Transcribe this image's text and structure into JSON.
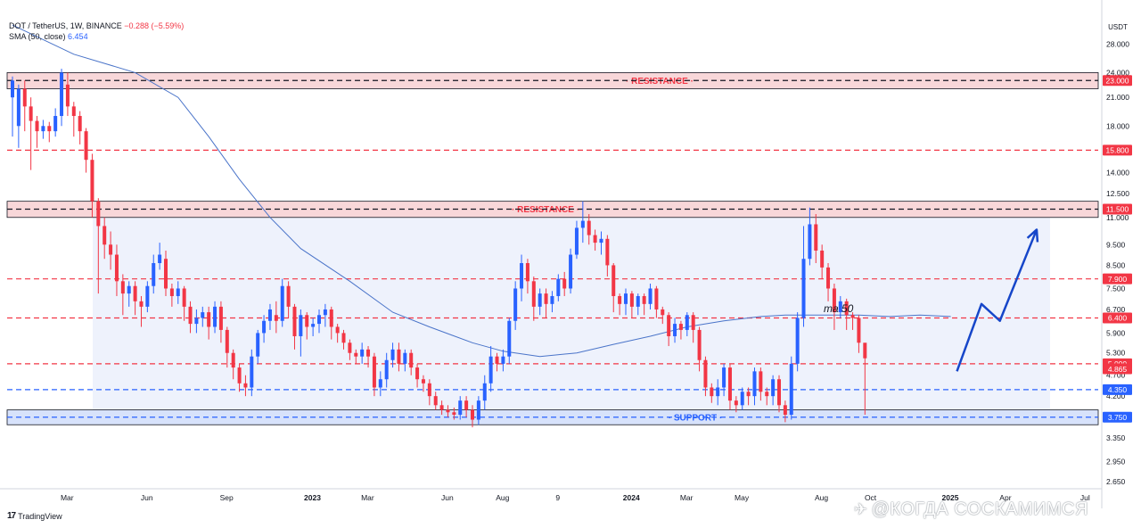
{
  "header": {
    "symbol": "DOT / TetherUS, 1W, BINANCE",
    "change": "−0.288 (−5.59%)",
    "indicator": "SMA (50, close)",
    "indicator_value": "6.454"
  },
  "branding": {
    "logo_text": "TradingView",
    "logo_icon": "tradingview-icon"
  },
  "watermark": {
    "icon": "telegram-icon",
    "text": "@КОГДА СОСКАМИМСЯ"
  },
  "colors": {
    "up": "#2962ff",
    "down": "#f23645",
    "sma": "#4a74c9",
    "resistance": "#f23645",
    "support": "#2962ff",
    "zone_resist": "#f8d7d9",
    "range_fill": "#eef2fc",
    "projection": "#1646c9"
  },
  "chart_data": {
    "type": "candlestick",
    "scale": "log",
    "ylim": [
      2.55,
      33.5
    ],
    "axis_unit_label": "USDT",
    "y_ticks": [
      28.0,
      24.0,
      21.0,
      18.0,
      14.0,
      12.5,
      11.0,
      9.5,
      8.5,
      7.5,
      6.7,
      5.9,
      5.3,
      4.7,
      4.2,
      3.35,
      2.95,
      2.65
    ],
    "y_tick_labels": [
      "28.000",
      "24.000",
      "21.000",
      "18.000",
      "14.000",
      "12.500",
      "11.000",
      "9.500",
      "8.500",
      "7.500",
      "6.700",
      "5.900",
      "5.300",
      "4.700",
      "4.200",
      "3.350",
      "2.950",
      "2.650"
    ],
    "x_tick_labels": [
      "Mar",
      "Jun",
      "Sep",
      "2023",
      "Mar",
      "Jun",
      "Aug",
      "9",
      "2024",
      "Mar",
      "May",
      "Aug",
      "Oct",
      "2025",
      "Apr",
      "Jul"
    ],
    "x_tick_week_index": [
      6,
      19,
      32,
      46,
      55,
      68,
      77,
      86,
      98,
      107,
      116,
      129,
      137,
      150,
      159,
      172
    ],
    "price_levels": [
      {
        "value": 23.0,
        "label": "23.000",
        "kind": "resistance",
        "style": "black-dashed"
      },
      {
        "value": 15.8,
        "label": "15.800",
        "kind": "resistance",
        "style": "red-dashed"
      },
      {
        "value": 11.5,
        "label": "11.500",
        "kind": "resistance",
        "style": "black-dashed"
      },
      {
        "value": 7.9,
        "label": "7.900",
        "kind": "resistance",
        "style": "red-dashed"
      },
      {
        "value": 6.4,
        "label": "6.400",
        "kind": "resistance",
        "style": "red-dashed"
      },
      {
        "value": 5.0,
        "label": "5.000",
        "kind": "resistance",
        "style": "red-dashed"
      },
      {
        "value": 4.35,
        "label": "4.350",
        "kind": "support",
        "style": "blue-dashed"
      },
      {
        "value": 3.75,
        "label": "3.750",
        "kind": "support",
        "style": "blue-dashed"
      }
    ],
    "last_price": {
      "value": 4.865,
      "label": "4.865"
    },
    "zones": [
      {
        "label": "RESISTANCE",
        "from": 22.0,
        "to": 24.0
      },
      {
        "label": "RESISTANCE",
        "from": 11.0,
        "to": 12.0
      },
      {
        "label": "SUPPORT",
        "from": 3.6,
        "to": 3.9
      }
    ],
    "annotations": [
      {
        "text": "ma 50",
        "near_value": 6.7
      }
    ],
    "projection": [
      {
        "week": 154,
        "value": 4.8
      },
      {
        "week": 158,
        "value": 6.9
      },
      {
        "week": 161,
        "value": 6.3
      },
      {
        "week": 167,
        "value": 10.3
      }
    ],
    "sma_50": [
      [
        0,
        31.0
      ],
      [
        10,
        26.5
      ],
      [
        20,
        24.0
      ],
      [
        27,
        21.0
      ],
      [
        32,
        17.0
      ],
      [
        37,
        13.5
      ],
      [
        42,
        11.0
      ],
      [
        47,
        9.3
      ],
      [
        55,
        7.8
      ],
      [
        62,
        6.6
      ],
      [
        68,
        6.1
      ],
      [
        75,
        5.6
      ],
      [
        80,
        5.35
      ],
      [
        86,
        5.2
      ],
      [
        92,
        5.3
      ],
      [
        98,
        5.55
      ],
      [
        104,
        5.8
      ],
      [
        110,
        6.1
      ],
      [
        116,
        6.3
      ],
      [
        122,
        6.45
      ],
      [
        126,
        6.5
      ],
      [
        132,
        6.5
      ],
      [
        138,
        6.5
      ],
      [
        143,
        6.45
      ],
      [
        148,
        6.5
      ],
      [
        153,
        6.45
      ]
    ],
    "candles": [
      [
        21.0,
        23.0,
        18.0,
        17.0,
        23.5
      ],
      [
        18.0,
        22.0,
        16.5,
        16.0,
        22.5
      ],
      [
        22.0,
        20.0,
        19.0,
        17.5,
        23.0
      ],
      [
        20.0,
        18.5,
        16.5,
        14.2,
        21.0
      ],
      [
        18.5,
        17.5,
        16.8,
        16.0,
        19.0
      ],
      [
        17.5,
        18.0,
        17.4,
        16.8,
        18.6
      ],
      [
        18.0,
        17.5,
        17.0,
        16.5,
        18.4
      ],
      [
        17.5,
        19.0,
        17.3,
        17.0,
        19.8
      ],
      [
        19.0,
        24.0,
        18.5,
        18.0,
        24.5
      ],
      [
        22.5,
        20.0,
        19.5,
        19.0,
        24.0
      ],
      [
        20.0,
        19.0,
        17.8,
        17.0,
        20.5
      ],
      [
        19.0,
        17.5,
        17.0,
        16.3,
        19.5
      ],
      [
        17.5,
        15.0,
        14.5,
        14.0,
        17.8
      ],
      [
        15.0,
        12.0,
        11.5,
        11.0,
        15.5
      ],
      [
        12.0,
        10.5,
        10.0,
        7.3,
        12.2
      ],
      [
        10.5,
        9.5,
        9.0,
        8.8,
        11.0
      ],
      [
        9.5,
        9.0,
        8.8,
        8.3,
        10.2
      ],
      [
        9.0,
        7.8,
        7.5,
        7.2,
        9.5
      ],
      [
        7.8,
        7.3,
        6.9,
        6.5,
        8.1
      ],
      [
        7.3,
        7.6,
        7.0,
        6.8,
        7.8
      ],
      [
        7.6,
        7.0,
        6.8,
        6.5,
        7.8
      ],
      [
        7.0,
        6.8,
        6.2,
        6.1,
        7.2
      ],
      [
        6.8,
        7.6,
        6.7,
        6.6,
        7.8
      ],
      [
        7.6,
        8.6,
        7.5,
        7.3,
        9.0
      ],
      [
        8.6,
        9.0,
        8.5,
        8.3,
        9.6
      ],
      [
        8.8,
        7.5,
        7.1,
        7.2,
        9.2
      ],
      [
        7.5,
        7.2,
        6.9,
        6.8,
        7.7
      ],
      [
        7.2,
        7.5,
        7.0,
        6.9,
        7.8
      ],
      [
        7.5,
        6.8,
        6.4,
        6.3,
        7.6
      ],
      [
        6.8,
        6.2,
        6.0,
        5.9,
        7.0
      ],
      [
        6.2,
        6.4,
        6.1,
        5.9,
        6.7
      ],
      [
        6.4,
        6.6,
        6.0,
        6.1,
        6.8
      ],
      [
        6.6,
        6.1,
        5.8,
        5.7,
        6.8
      ],
      [
        6.1,
        6.8,
        6.0,
        5.9,
        7.0
      ],
      [
        6.8,
        6.0,
        5.7,
        5.6,
        7.0
      ],
      [
        6.0,
        5.3,
        5.0,
        4.9,
        6.1
      ],
      [
        5.3,
        4.9,
        4.7,
        4.6,
        5.4
      ],
      [
        4.9,
        4.5,
        4.4,
        4.3,
        5.0
      ],
      [
        4.5,
        4.4,
        4.3,
        4.2,
        4.7
      ],
      [
        4.4,
        5.2,
        4.3,
        4.2,
        5.4
      ],
      [
        5.2,
        5.9,
        5.1,
        5.0,
        6.0
      ],
      [
        5.9,
        6.3,
        5.8,
        5.6,
        6.5
      ],
      [
        6.3,
        6.7,
        6.2,
        6.0,
        6.9
      ],
      [
        6.5,
        6.3,
        6.1,
        5.9,
        7.0
      ],
      [
        6.3,
        7.6,
        6.2,
        6.1,
        7.9
      ],
      [
        7.6,
        6.8,
        6.5,
        6.4,
        7.8
      ],
      [
        6.8,
        5.8,
        5.5,
        5.4,
        6.9
      ],
      [
        5.8,
        6.5,
        5.6,
        5.2,
        6.7
      ],
      [
        6.5,
        6.1,
        5.8,
        5.7,
        6.6
      ],
      [
        6.1,
        6.2,
        5.9,
        5.8,
        6.4
      ],
      [
        6.2,
        6.5,
        6.0,
        5.9,
        6.7
      ],
      [
        6.5,
        6.7,
        6.3,
        6.1,
        6.9
      ],
      [
        6.7,
        6.1,
        5.9,
        5.7,
        6.8
      ],
      [
        6.1,
        5.9,
        5.8,
        5.6,
        6.2
      ],
      [
        5.9,
        5.6,
        5.5,
        5.4,
        6.0
      ],
      [
        5.6,
        5.3,
        5.2,
        5.1,
        5.7
      ],
      [
        5.3,
        5.2,
        5.1,
        5.0,
        5.4
      ],
      [
        5.2,
        5.4,
        5.1,
        5.0,
        5.6
      ],
      [
        5.4,
        5.2,
        5.0,
        4.9,
        5.5
      ],
      [
        5.2,
        4.4,
        4.3,
        4.2,
        5.3
      ],
      [
        4.4,
        4.6,
        4.3,
        4.2,
        4.8
      ],
      [
        4.6,
        5.1,
        4.5,
        4.4,
        5.3
      ],
      [
        5.1,
        5.4,
        5.0,
        4.9,
        5.6
      ],
      [
        5.4,
        5.0,
        4.9,
        4.8,
        5.6
      ],
      [
        5.0,
        5.3,
        4.9,
        4.8,
        5.4
      ],
      [
        5.3,
        4.9,
        4.8,
        4.7,
        5.4
      ],
      [
        4.9,
        4.6,
        4.5,
        4.4,
        5.0
      ],
      [
        4.6,
        4.5,
        4.4,
        4.3,
        4.7
      ],
      [
        4.5,
        4.2,
        4.1,
        4.0,
        4.6
      ],
      [
        4.2,
        4.0,
        3.95,
        3.9,
        4.3
      ],
      [
        4.0,
        3.9,
        3.85,
        3.8,
        4.1
      ],
      [
        3.9,
        3.85,
        3.8,
        3.75,
        4.0
      ],
      [
        3.85,
        3.8,
        3.75,
        3.7,
        3.95
      ],
      [
        3.8,
        4.1,
        3.75,
        3.7,
        4.2
      ],
      [
        4.1,
        3.9,
        3.8,
        3.75,
        4.2
      ],
      [
        3.9,
        3.7,
        3.6,
        3.55,
        4.0
      ],
      [
        3.7,
        4.1,
        3.65,
        3.6,
        4.2
      ],
      [
        4.1,
        4.5,
        4.0,
        3.9,
        4.7
      ],
      [
        4.5,
        5.2,
        4.4,
        4.3,
        5.5
      ],
      [
        5.2,
        5.0,
        4.9,
        4.8,
        5.3
      ],
      [
        5.0,
        5.2,
        4.9,
        4.8,
        5.4
      ],
      [
        5.2,
        6.3,
        5.1,
        5.0,
        6.4
      ],
      [
        6.3,
        7.5,
        6.2,
        6.0,
        7.8
      ],
      [
        7.5,
        8.6,
        7.3,
        7.0,
        9.0
      ],
      [
        8.6,
        7.8,
        7.4,
        7.3,
        8.8
      ],
      [
        7.8,
        6.8,
        6.5,
        6.3,
        8.0
      ],
      [
        6.8,
        7.3,
        6.6,
        6.5,
        7.5
      ],
      [
        7.3,
        6.9,
        6.6,
        6.4,
        7.5
      ],
      [
        6.9,
        7.2,
        6.8,
        6.6,
        7.4
      ],
      [
        7.2,
        7.9,
        7.1,
        7.0,
        8.1
      ],
      [
        7.9,
        7.5,
        7.3,
        7.2,
        8.2
      ],
      [
        7.5,
        9.0,
        7.4,
        7.3,
        9.3
      ],
      [
        9.0,
        10.4,
        8.9,
        8.8,
        10.8
      ],
      [
        10.4,
        10.8,
        10.0,
        9.6,
        12.0
      ],
      [
        10.8,
        10.0,
        9.7,
        9.5,
        11.2
      ],
      [
        10.0,
        9.6,
        9.3,
        9.2,
        10.3
      ],
      [
        9.6,
        9.8,
        9.2,
        9.0,
        10.2
      ],
      [
        9.8,
        8.5,
        8.2,
        8.0,
        10.0
      ],
      [
        8.5,
        7.2,
        6.9,
        6.6,
        8.6
      ],
      [
        7.2,
        6.9,
        6.6,
        6.5,
        7.3
      ],
      [
        6.9,
        7.3,
        6.8,
        6.5,
        7.5
      ],
      [
        7.3,
        6.8,
        6.6,
        6.4,
        7.4
      ],
      [
        6.8,
        7.2,
        6.7,
        6.5,
        7.3
      ],
      [
        7.2,
        6.9,
        6.7,
        6.5,
        7.3
      ],
      [
        6.9,
        7.5,
        6.8,
        6.7,
        7.7
      ],
      [
        7.5,
        6.7,
        6.5,
        6.4,
        7.6
      ],
      [
        6.7,
        6.5,
        6.3,
        6.2,
        6.8
      ],
      [
        6.5,
        5.8,
        5.6,
        5.5,
        6.6
      ],
      [
        5.8,
        6.2,
        5.7,
        5.6,
        6.4
      ],
      [
        6.2,
        6.0,
        5.8,
        5.7,
        6.3
      ],
      [
        6.0,
        6.5,
        5.9,
        5.8,
        6.6
      ],
      [
        6.5,
        6.0,
        5.8,
        5.6,
        6.6
      ],
      [
        6.0,
        5.1,
        4.9,
        4.8,
        6.1
      ],
      [
        5.1,
        4.4,
        4.2,
        4.2,
        5.2
      ],
      [
        4.4,
        4.2,
        4.1,
        4.05,
        4.5
      ],
      [
        4.2,
        4.4,
        4.1,
        4.0,
        4.6
      ],
      [
        4.4,
        4.9,
        4.3,
        4.2,
        5.0
      ],
      [
        4.9,
        4.1,
        3.95,
        3.9,
        5.0
      ],
      [
        4.1,
        4.0,
        3.9,
        3.85,
        4.2
      ],
      [
        4.0,
        4.3,
        3.95,
        3.9,
        4.4
      ],
      [
        4.3,
        4.2,
        4.1,
        4.0,
        4.4
      ],
      [
        4.2,
        4.8,
        4.1,
        4.0,
        4.9
      ],
      [
        4.8,
        4.3,
        4.2,
        4.1,
        4.9
      ],
      [
        4.3,
        4.2,
        4.1,
        4.0,
        4.4
      ],
      [
        4.2,
        4.6,
        4.1,
        4.0,
        4.7
      ],
      [
        4.6,
        4.0,
        3.9,
        3.85,
        4.7
      ],
      [
        4.0,
        3.8,
        3.7,
        3.65,
        4.1
      ],
      [
        3.8,
        5.0,
        3.75,
        3.7,
        5.2
      ],
      [
        5.0,
        6.4,
        4.9,
        4.8,
        6.6
      ],
      [
        6.4,
        8.8,
        6.3,
        6.1,
        10.5
      ],
      [
        8.8,
        10.6,
        8.7,
        8.5,
        11.6
      ],
      [
        10.6,
        9.2,
        8.8,
        8.6,
        11.2
      ],
      [
        9.2,
        8.4,
        8.1,
        7.9,
        9.5
      ],
      [
        8.4,
        7.5,
        7.2,
        7.0,
        8.6
      ],
      [
        7.5,
        6.6,
        6.4,
        6.0,
        7.7
      ],
      [
        6.6,
        7.0,
        6.5,
        6.4,
        7.2
      ],
      [
        7.0,
        6.5,
        6.3,
        6.0,
        7.1
      ],
      [
        6.5,
        6.4,
        6.2,
        6.0,
        6.6
      ],
      [
        6.4,
        5.6,
        5.4,
        5.3,
        6.5
      ],
      [
        5.6,
        5.15,
        4.9,
        3.8,
        5.2
      ]
    ]
  },
  "accessibility": {}
}
